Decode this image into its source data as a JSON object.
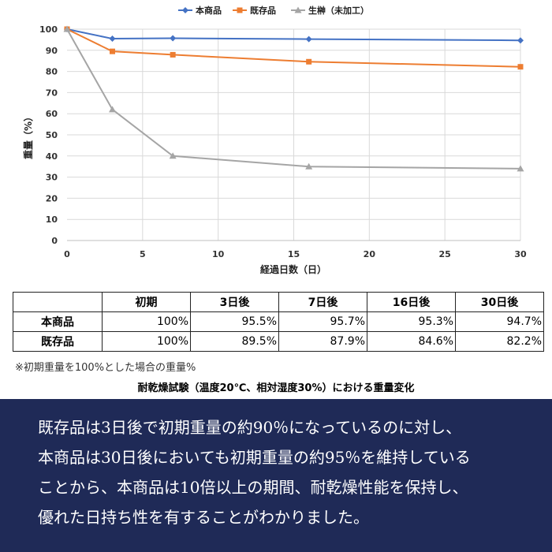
{
  "chart_data": {
    "type": "line",
    "x": [
      0,
      3,
      7,
      16,
      30
    ],
    "series": [
      {
        "name": "本商品",
        "values": [
          100,
          95.5,
          95.7,
          95.3,
          94.7
        ],
        "color": "#4472c4",
        "marker": "diamond"
      },
      {
        "name": "既存品",
        "values": [
          100,
          89.5,
          87.9,
          84.6,
          82.2
        ],
        "color": "#ed7d31",
        "marker": "square"
      },
      {
        "name": "生榊（未加工）",
        "values": [
          100,
          62,
          40,
          35,
          34
        ],
        "color": "#a5a5a5",
        "marker": "triangle"
      }
    ],
    "xlabel": "経過日数（日）",
    "ylabel": "重量（%）",
    "xlim": [
      0,
      30
    ],
    "ylim": [
      0,
      100
    ],
    "xticks": [
      0,
      5,
      10,
      15,
      20,
      25,
      30
    ],
    "yticks": [
      0,
      10,
      20,
      30,
      40,
      50,
      60,
      70,
      80,
      90,
      100
    ],
    "grid": true,
    "legend_position": "top"
  },
  "table": {
    "columns": [
      "",
      "初期",
      "3日後",
      "7日後",
      "16日後",
      "30日後"
    ],
    "rows": [
      {
        "label": "本商品",
        "cells": [
          "100%",
          "95.5%",
          "95.7%",
          "95.3%",
          "94.7%"
        ]
      },
      {
        "label": "既存品",
        "cells": [
          "100%",
          "89.5%",
          "87.9%",
          "84.6%",
          "82.2%"
        ]
      }
    ]
  },
  "footnote": "※初期重量を100%とした場合の重量%",
  "caption": "耐乾燥試験（温度20℃、相対湿度30%）における重量変化",
  "banner": {
    "lines": [
      "既存品は3日後で初期重量の約90％になっているのに対し、",
      "本商品は30日後においても初期重量の約95％を維持している",
      "ことから、本商品は10倍以上の期間、耐乾燥性能を保持し、",
      "優れた日持ち性を有することがわかりました。"
    ]
  },
  "colors": {
    "banner_bg": "#1f2a57",
    "grid": "#d9d9d9"
  }
}
